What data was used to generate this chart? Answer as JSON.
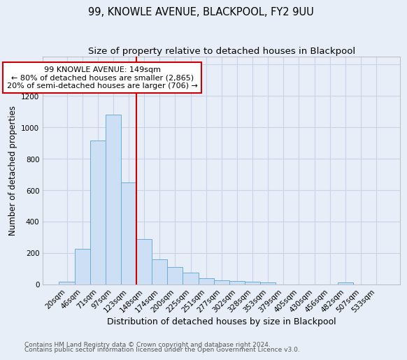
{
  "title1": "99, KNOWLE AVENUE, BLACKPOOL, FY2 9UU",
  "title2": "Size of property relative to detached houses in Blackpool",
  "xlabel": "Distribution of detached houses by size in Blackpool",
  "ylabel": "Number of detached properties",
  "categories": [
    "20sqm",
    "46sqm",
    "71sqm",
    "97sqm",
    "123sqm",
    "148sqm",
    "174sqm",
    "200sqm",
    "225sqm",
    "251sqm",
    "277sqm",
    "302sqm",
    "328sqm",
    "353sqm",
    "379sqm",
    "405sqm",
    "430sqm",
    "456sqm",
    "482sqm",
    "507sqm",
    "533sqm"
  ],
  "values": [
    18,
    225,
    915,
    1080,
    650,
    290,
    160,
    108,
    75,
    38,
    27,
    22,
    18,
    13,
    0,
    0,
    0,
    0,
    14,
    0,
    0
  ],
  "bar_color": "#ccdff5",
  "bar_edge_color": "#6aaed6",
  "vline_color": "#cc0000",
  "annotation_lines": [
    "99 KNOWLE AVENUE: 149sqm",
    "← 80% of detached houses are smaller (2,865)",
    "20% of semi-detached houses are larger (706) →"
  ],
  "annotation_box_color": "#ffffff",
  "annotation_box_edge_color": "#cc0000",
  "ylim": [
    0,
    1450
  ],
  "yticks": [
    0,
    200,
    400,
    600,
    800,
    1000,
    1200,
    1400
  ],
  "footnote1": "Contains HM Land Registry data © Crown copyright and database right 2024.",
  "footnote2": "Contains public sector information licensed under the Open Government Licence v3.0.",
  "background_color": "#e8eef7",
  "grid_color": "#c8d4e8",
  "title1_fontsize": 10.5,
  "title2_fontsize": 9.5,
  "xlabel_fontsize": 9,
  "ylabel_fontsize": 8.5,
  "tick_fontsize": 7.5,
  "annotation_fontsize": 8,
  "footnote_fontsize": 6.5
}
